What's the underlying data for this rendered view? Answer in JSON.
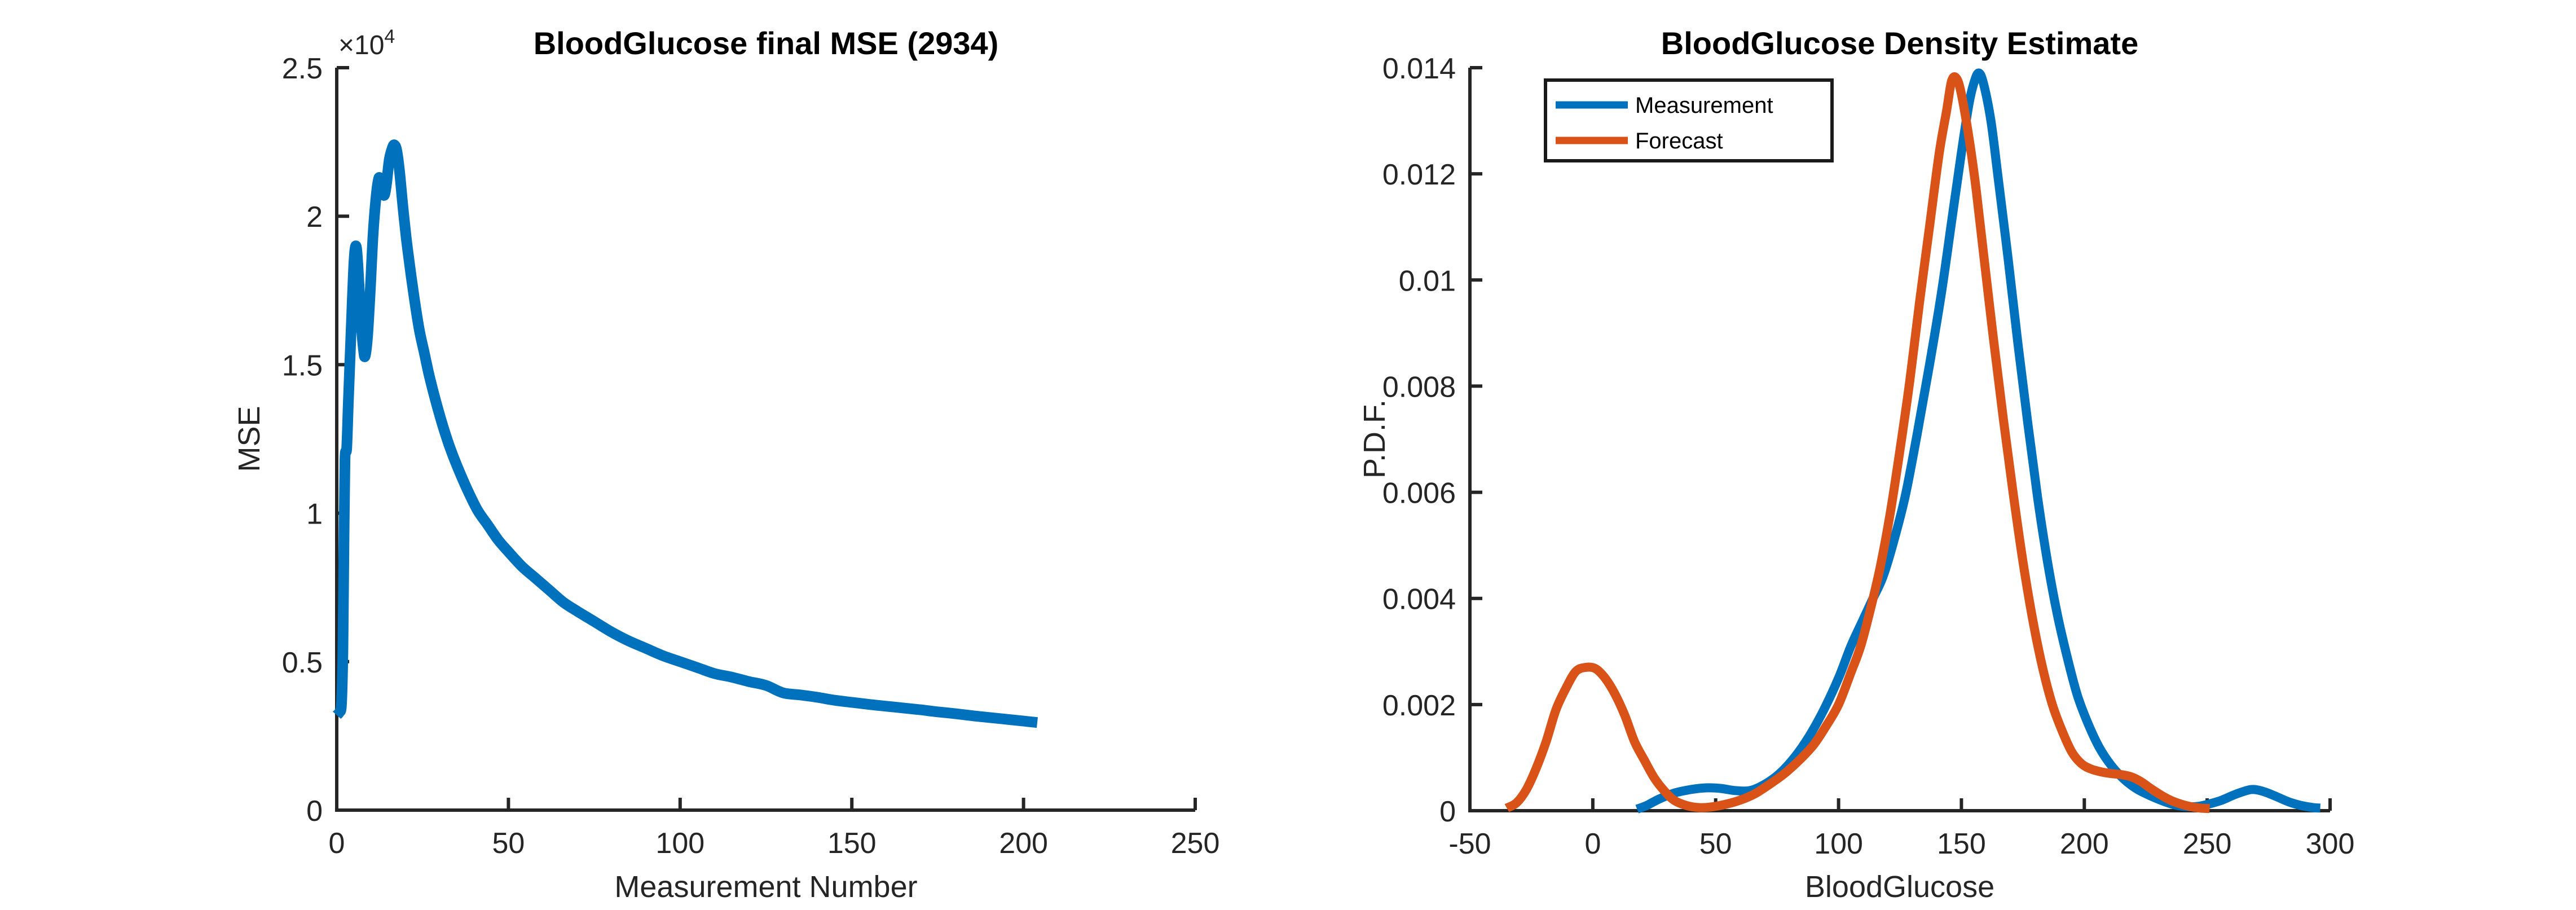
{
  "figure": {
    "background": "#ffffff"
  },
  "left_plot": {
    "exponent_base": "×10",
    "exponent_power": "4"
  },
  "right_plot": {
    "legend": {
      "items": [
        {
          "label": "Measurement",
          "color": "#0072BD"
        },
        {
          "label": "Forecast",
          "color": "#D95319"
        }
      ]
    }
  },
  "chart_data": [
    {
      "type": "line",
      "title": "BloodGlucose final MSE (2934)",
      "xlabel": "Measurement Number",
      "ylabel": "MSE",
      "xlim": [
        0,
        250
      ],
      "ylim": [
        0,
        25000
      ],
      "grid": false,
      "y_scale_note": "y tick labels shown divided by 10^4 with x10^4 exponent at axis top",
      "x_axis": {
        "tick_values": [
          0,
          50,
          100,
          150,
          200,
          250
        ],
        "tick_labels": [
          "0",
          "50",
          "100",
          "150",
          "200",
          "250"
        ]
      },
      "y_axis": {
        "tick_values": [
          0,
          5000,
          10000,
          15000,
          20000,
          25000
        ],
        "tick_labels": [
          "0",
          "0.5",
          "1",
          "1.5",
          "2",
          "2.5"
        ]
      },
      "series": [
        {
          "name": "MSE",
          "color": "#0072BD",
          "x": [
            0,
            0.8,
            1.4,
            1.8,
            2.1,
            2.4,
            2.9,
            3.4,
            4.2,
            5,
            5.6,
            6.2,
            7,
            7.8,
            8.3,
            9,
            9.8,
            10.6,
            11.5,
            12.3,
            13,
            13.8,
            14.5,
            15.3,
            16.2,
            16.8,
            17.5,
            18.3,
            19.2,
            20.2,
            21.3,
            22.5,
            24,
            25.5,
            27,
            29,
            31,
            33,
            35,
            38,
            41,
            44,
            47,
            50,
            54,
            58,
            62,
            66,
            70,
            75,
            80,
            85,
            90,
            95,
            100,
            105,
            110,
            115,
            120,
            125,
            130,
            135,
            140,
            145,
            150,
            155,
            160,
            165,
            170,
            175,
            180,
            185,
            190,
            195,
            200,
            204
          ],
          "y": [
            3200,
            3300,
            3600,
            5500,
            9000,
            11800,
            12200,
            13800,
            16200,
            18400,
            19000,
            18300,
            16600,
            15500,
            15300,
            16000,
            17600,
            19400,
            20700,
            21300,
            21000,
            20700,
            21100,
            21900,
            22300,
            22400,
            22200,
            21500,
            20400,
            19300,
            18300,
            17300,
            16200,
            15400,
            14600,
            13700,
            12900,
            12200,
            11600,
            10800,
            10100,
            9600,
            9100,
            8700,
            8200,
            7800,
            7400,
            7000,
            6700,
            6350,
            6000,
            5700,
            5450,
            5200,
            5000,
            4800,
            4600,
            4480,
            4330,
            4200,
            3950,
            3880,
            3800,
            3700,
            3630,
            3560,
            3500,
            3440,
            3380,
            3310,
            3250,
            3180,
            3120,
            3060,
            3000,
            2950
          ]
        }
      ]
    },
    {
      "type": "line",
      "title": "BloodGlucose Density Estimate",
      "xlabel": "BloodGlucose",
      "ylabel": "P.D.F.",
      "xlim": [
        -50,
        300
      ],
      "ylim": [
        0,
        0.014
      ],
      "grid": false,
      "legend_position": "northwest",
      "x_axis": {
        "tick_values": [
          -50,
          0,
          50,
          100,
          150,
          200,
          250,
          300
        ],
        "tick_labels": [
          "-50",
          "0",
          "50",
          "100",
          "150",
          "200",
          "250",
          "300"
        ]
      },
      "y_axis": {
        "tick_values": [
          0,
          0.002,
          0.004,
          0.006,
          0.008,
          0.01,
          0.012,
          0.014
        ],
        "tick_labels": [
          "0",
          "0.002",
          "0.004",
          "0.006",
          "0.008",
          "0.01",
          "0.012",
          "0.014"
        ]
      },
      "series": [
        {
          "name": "Measurement",
          "color": "#0072BD",
          "x": [
            18,
            22,
            27,
            33,
            40,
            46,
            52,
            58,
            64,
            70,
            76,
            82,
            88,
            94,
            100,
            105,
            110,
            114,
            118,
            122,
            127,
            132,
            137,
            142,
            146,
            150,
            153,
            155,
            157,
            159,
            162,
            165,
            169,
            173,
            177,
            181,
            185,
            189,
            193,
            197,
            201,
            206,
            211,
            216,
            221,
            226,
            231,
            236,
            241,
            246,
            251,
            256,
            261,
            266,
            269,
            273,
            278,
            283,
            288,
            293,
            296
          ],
          "y": [
            3e-05,
            0.0001,
            0.00022,
            0.00033,
            0.0004,
            0.00043,
            0.00042,
            0.00038,
            0.00038,
            0.0005,
            0.0007,
            0.001,
            0.0014,
            0.0019,
            0.0025,
            0.0031,
            0.0036,
            0.004,
            0.0044,
            0.005,
            0.0059,
            0.0071,
            0.0084,
            0.0098,
            0.0111,
            0.0124,
            0.0133,
            0.0137,
            0.0139,
            0.0137,
            0.013,
            0.0119,
            0.0104,
            0.0088,
            0.0073,
            0.0059,
            0.0047,
            0.0037,
            0.0029,
            0.0022,
            0.0017,
            0.0012,
            0.00085,
            0.0006,
            0.00042,
            0.0003,
            0.0002,
            0.00012,
            8e-05,
            8e-05,
            0.00013,
            0.0002,
            0.0003,
            0.00038,
            0.0004,
            0.00036,
            0.00027,
            0.00017,
            0.0001,
            6e-05,
            5e-05
          ]
        },
        {
          "name": "Forecast",
          "color": "#D95319",
          "x": [
            -35,
            -31,
            -27,
            -23,
            -19,
            -15,
            -11,
            -7,
            -3,
            1,
            5,
            9,
            13,
            17,
            21,
            25,
            29,
            33,
            38,
            43,
            48,
            54,
            60,
            66,
            72,
            78,
            84,
            90,
            95,
            100,
            105,
            109,
            113,
            117,
            121,
            125,
            129,
            133,
            137,
            141,
            144,
            146,
            148,
            150,
            153,
            156,
            159,
            163,
            167,
            171,
            175,
            179,
            183,
            187,
            191,
            195,
            199,
            203,
            207,
            211,
            215,
            219,
            223,
            227,
            231,
            235,
            239,
            243,
            247,
            251
          ],
          "y": [
            5e-05,
            0.00015,
            0.0004,
            0.0008,
            0.0013,
            0.0019,
            0.0023,
            0.00262,
            0.0027,
            0.00268,
            0.0025,
            0.0022,
            0.0018,
            0.0013,
            0.00095,
            0.00062,
            0.00038,
            0.0002,
            0.0001,
            6e-05,
            7e-05,
            0.00012,
            0.0002,
            0.00032,
            0.0005,
            0.0007,
            0.00095,
            0.00125,
            0.0016,
            0.002,
            0.0026,
            0.0031,
            0.0038,
            0.0046,
            0.0056,
            0.0068,
            0.0081,
            0.0096,
            0.011,
            0.0124,
            0.0132,
            0.01375,
            0.0138,
            0.0135,
            0.0127,
            0.0117,
            0.0105,
            0.0089,
            0.0074,
            0.006,
            0.0047,
            0.0036,
            0.0027,
            0.002,
            0.0015,
            0.0011,
            0.00088,
            0.00078,
            0.00073,
            0.0007,
            0.00068,
            0.00064,
            0.00055,
            0.00042,
            0.0003,
            0.0002,
            0.00013,
            8e-05,
            5e-05,
            4e-05
          ]
        }
      ]
    }
  ]
}
